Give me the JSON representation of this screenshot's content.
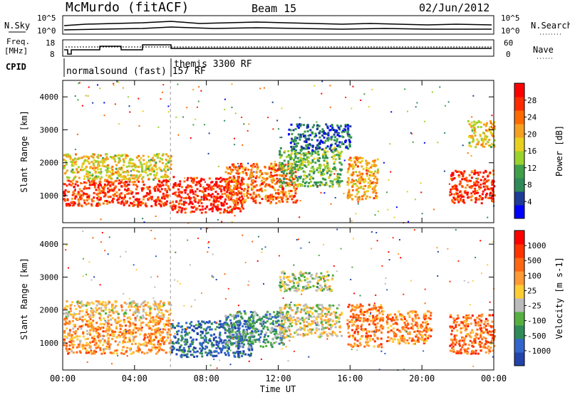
{
  "header": {
    "station": "McMurdo (fitACF)",
    "beam": "Beam 15",
    "date": "02/Jun/2012"
  },
  "top_panels": {
    "left_label_nsky": "N.Sky",
    "left_ticks_nsky": [
      "10^5",
      "10^0"
    ],
    "right_ticks_nsearch": [
      "10^5",
      "10^0"
    ],
    "right_label_nsearch": "N.Search",
    "freq_label_1": "Freq.",
    "freq_label_2": "[MHz]",
    "freq_ticks": [
      "18",
      "8"
    ],
    "nave_ticks": [
      "60",
      "0"
    ],
    "nave_label": "Nave",
    "cpid_label": "CPID",
    "mode_1": "normalsound (fast) 157 RF",
    "mode_2": "themis 3300 RF"
  },
  "colors": {
    "power": [
      "#0000ff",
      "#1e3c96",
      "#2e8b57",
      "#3fa04a",
      "#9ad22e",
      "#e8d020",
      "#f5a020",
      "#ff6a00",
      "#ff2a00",
      "#ff0000"
    ],
    "velocity": [
      "#2244aa",
      "#3366cc",
      "#2e8b57",
      "#55b040",
      "#bbbbbb",
      "#ffcc33",
      "#ff9933",
      "#ff6611",
      "#ff3300",
      "#ff0000"
    ]
  },
  "chart_data": [
    {
      "type": "heatmap",
      "name_label": "power",
      "ylabel": "Slant Range [km]",
      "yticks": [
        "4000",
        "3000",
        "2000",
        "1000"
      ],
      "ylim": [
        180,
        4500
      ],
      "xlim_hours": [
        0,
        24
      ],
      "colorbar_label": "Power [dB]",
      "colorbar_ticks": [
        "28",
        "24",
        "20",
        "16",
        "12",
        "8",
        "4"
      ],
      "colorbar_range": [
        0,
        30
      ],
      "regions": [
        {
          "t0": 0.0,
          "t1": 6.0,
          "r0": 700,
          "r1": 1500,
          "level": 0.85
        },
        {
          "t0": 0.0,
          "t1": 6.0,
          "r0": 1500,
          "r1": 2300,
          "level": 0.55
        },
        {
          "t0": 6.0,
          "t1": 10.0,
          "r0": 500,
          "r1": 1600,
          "level": 0.9
        },
        {
          "t0": 9.0,
          "t1": 13.0,
          "r0": 800,
          "r1": 2000,
          "level": 0.75
        },
        {
          "t0": 12.0,
          "t1": 15.5,
          "r0": 1300,
          "r1": 2500,
          "level": 0.4
        },
        {
          "t0": 15.8,
          "t1": 17.5,
          "r0": 900,
          "r1": 2200,
          "level": 0.65
        },
        {
          "t0": 12.5,
          "t1": 16.0,
          "r0": 2400,
          "r1": 3200,
          "level": 0.2
        },
        {
          "t0": 21.5,
          "t1": 24.0,
          "r0": 800,
          "r1": 1800,
          "level": 0.85
        },
        {
          "t0": 22.5,
          "t1": 24.0,
          "r0": 2500,
          "r1": 3300,
          "level": 0.55
        }
      ]
    },
    {
      "type": "heatmap",
      "name_label": "velocity",
      "ylabel": "Slant Range [km]",
      "yticks": [
        "4000",
        "3000",
        "2000",
        "1000"
      ],
      "ylim": [
        180,
        4500
      ],
      "xlim_hours": [
        0,
        24
      ],
      "colorbar_label": "Velocity [m s-1]",
      "colorbar_ticks": [
        "1000",
        "500",
        "100",
        "25",
        "-25",
        "-100",
        "-500",
        "-1000"
      ],
      "regions": [
        {
          "t0": 0.0,
          "t1": 6.0,
          "r0": 700,
          "r1": 1800,
          "level": 0.65
        },
        {
          "t0": 0.0,
          "t1": 6.0,
          "r0": 1800,
          "r1": 2300,
          "level": 0.55
        },
        {
          "t0": 6.0,
          "t1": 10.5,
          "r0": 600,
          "r1": 1700,
          "level": 0.15
        },
        {
          "t0": 9.0,
          "t1": 12.5,
          "r0": 900,
          "r1": 2000,
          "level": 0.3
        },
        {
          "t0": 12.0,
          "t1": 15.5,
          "r0": 1200,
          "r1": 2200,
          "level": 0.5
        },
        {
          "t0": 15.8,
          "t1": 17.8,
          "r0": 900,
          "r1": 2200,
          "level": 0.7
        },
        {
          "t0": 18.0,
          "t1": 20.5,
          "r0": 1000,
          "r1": 2000,
          "level": 0.7
        },
        {
          "t0": 21.5,
          "t1": 24.0,
          "r0": 700,
          "r1": 1900,
          "level": 0.75
        },
        {
          "t0": 12.0,
          "t1": 15.0,
          "r0": 2600,
          "r1": 3200,
          "level": 0.45
        }
      ]
    }
  ],
  "x_axis": {
    "ticks": [
      "00:00",
      "04:00",
      "08:00",
      "12:00",
      "16:00",
      "20:00",
      "00:00"
    ],
    "label": "Time UT"
  }
}
